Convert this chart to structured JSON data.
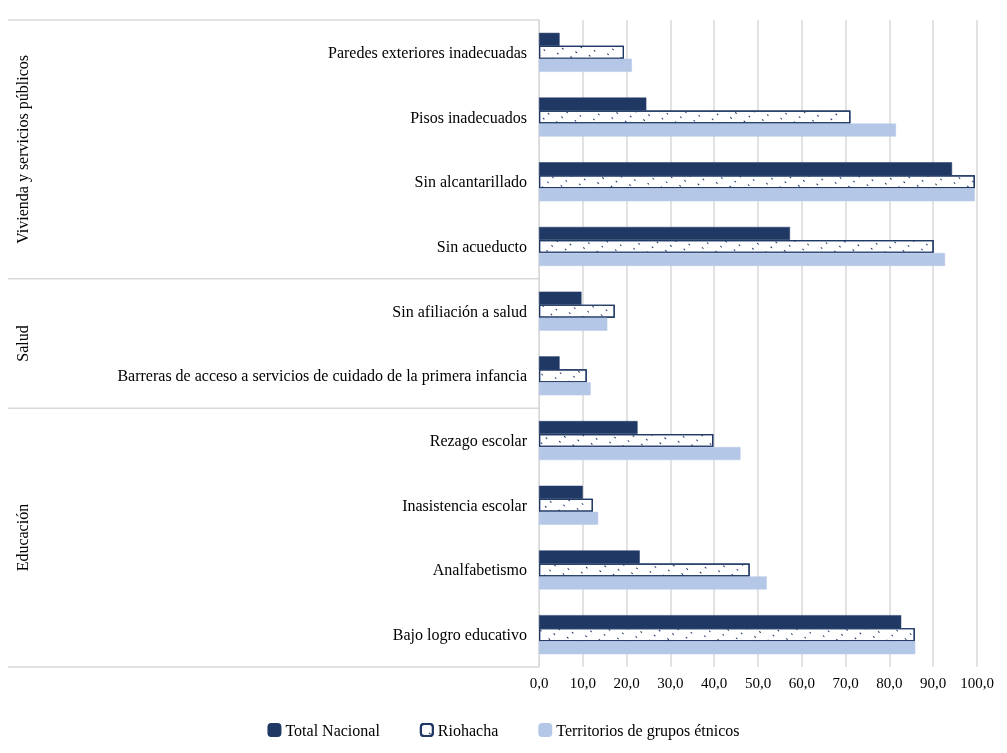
{
  "chart_data": {
    "type": "bar",
    "orientation": "horizontal",
    "categories": [
      "Paredes exteriores inadecuadas",
      "Pisos inadecuados",
      "Sin alcantarillado",
      "Sin acueducto",
      "Sin afiliación a salud",
      "Barreras de acceso a servicios de cuidado de la primera infancia",
      "Rezago escolar",
      "Inasistencia escolar",
      "Analfabetismo",
      "Bajo logro educativo"
    ],
    "series": [
      {
        "name": "Total Nacional",
        "color": "#203864",
        "values": [
          4.7,
          24.5,
          94.3,
          57.3,
          9.7,
          4.7,
          22.5,
          10.0,
          23.0,
          82.7
        ]
      },
      {
        "name": "Riohacha",
        "color": "#ffffff",
        "values": [
          19.4,
          71.1,
          99.5,
          90.1,
          17.3,
          10.9,
          39.8,
          12.3,
          48.1,
          85.8
        ]
      },
      {
        "name": "Territorios de grupos étnicos",
        "color": "#b4c7e7",
        "values": [
          21.2,
          81.5,
          99.5,
          92.7,
          15.6,
          11.8,
          46.0,
          13.5,
          52.0,
          85.9
        ]
      }
    ],
    "xlim": [
      0,
      100
    ],
    "xticks": [
      {
        "value": 0,
        "label": "0,0"
      },
      {
        "value": 10,
        "label": "10,0"
      },
      {
        "value": 20,
        "label": "20,0"
      },
      {
        "value": 30,
        "label": "30,0"
      },
      {
        "value": 40,
        "label": "40,0"
      },
      {
        "value": 50,
        "label": "50,0"
      },
      {
        "value": 60,
        "label": "60,0"
      },
      {
        "value": 70,
        "label": "70,0"
      },
      {
        "value": 80,
        "label": "80,0"
      },
      {
        "value": 90,
        "label": "90,0"
      },
      {
        "value": 100,
        "label": "100,0"
      }
    ],
    "annotations": [
      "Vivienda y servicios públicos",
      "Salud",
      "Educación"
    ],
    "grid": "x",
    "legend": "bottom"
  }
}
